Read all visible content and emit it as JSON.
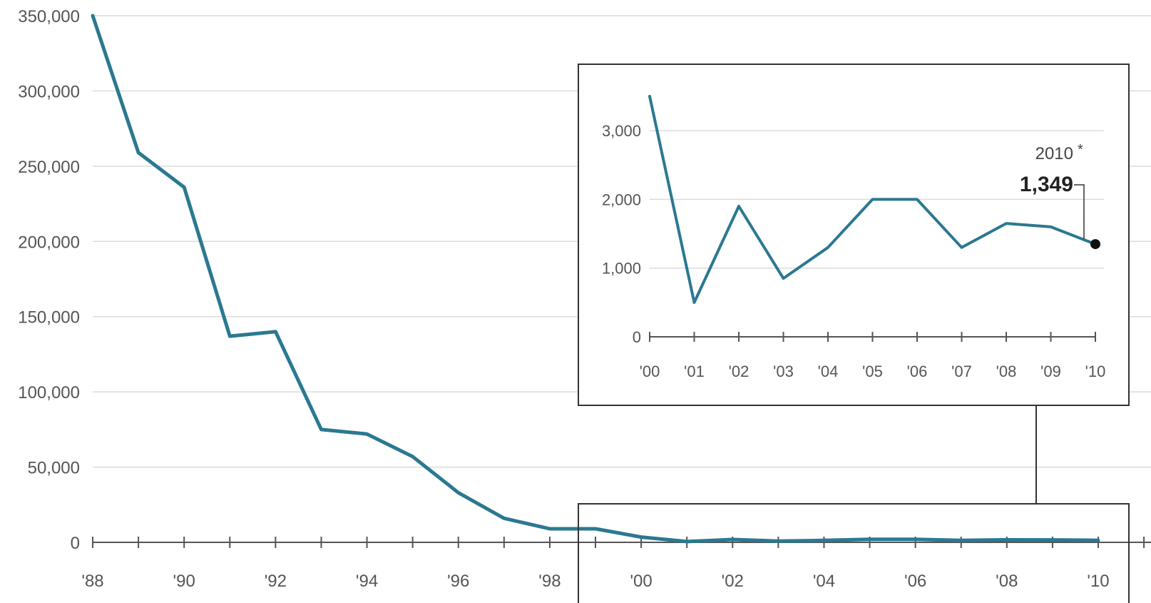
{
  "colors": {
    "line": "#2b7891",
    "grid": "#dcdcdc",
    "axis": "#555555",
    "frame": "#333333",
    "text": "#555555",
    "point": "#111111"
  },
  "chart_data": [
    {
      "type": "line",
      "title": "",
      "xlabel": "",
      "ylabel": "",
      "x": [
        1988,
        1989,
        1990,
        1991,
        1992,
        1993,
        1994,
        1995,
        1996,
        1997,
        1998,
        1999,
        2000,
        2001,
        2002,
        2003,
        2004,
        2005,
        2006,
        2007,
        2008,
        2009,
        2010
      ],
      "series": [
        {
          "values": [
            350000,
            259000,
            236000,
            137000,
            140000,
            75000,
            72000,
            57000,
            33000,
            16000,
            9000,
            9000,
            3500,
            500,
            1900,
            850,
            1300,
            2000,
            2000,
            1300,
            1650,
            1600,
            1349
          ]
        }
      ],
      "ylim": [
        0,
        350000
      ],
      "xlim": [
        1988,
        2010
      ],
      "yticks": [
        0,
        50000,
        100000,
        150000,
        200000,
        250000,
        300000,
        350000
      ],
      "ytick_labels": [
        "0",
        "50,000",
        "100,000",
        "150,000",
        "200,000",
        "250,000",
        "300,000",
        "350,000"
      ],
      "xtick_labels": [
        "'88",
        "'90",
        "'92",
        "'94",
        "'96",
        "'98",
        "'00",
        "'02",
        "'04",
        "'06",
        "'08",
        "'10"
      ],
      "grid": true
    },
    {
      "type": "line",
      "title": "",
      "xlabel": "",
      "ylabel": "",
      "x": [
        2000,
        2001,
        2002,
        2003,
        2004,
        2005,
        2006,
        2007,
        2008,
        2009,
        2010
      ],
      "series": [
        {
          "values": [
            3500,
            500,
            1900,
            850,
            1300,
            2000,
            2000,
            1300,
            1650,
            1600,
            1349
          ]
        }
      ],
      "ylim": [
        0,
        3500
      ],
      "yticks": [
        0,
        1000,
        2000,
        3000
      ],
      "ytick_labels": [
        "0",
        "1,000",
        "2,000",
        "3,000"
      ],
      "xtick_labels": [
        "'00",
        "'01",
        "'02",
        "'03",
        "'04",
        "'05",
        "'06",
        "'07",
        "'08",
        "'09",
        "'10"
      ],
      "grid": true,
      "annotation": {
        "year_label": "2010",
        "marker": "*",
        "value_label": "1,349"
      }
    }
  ]
}
